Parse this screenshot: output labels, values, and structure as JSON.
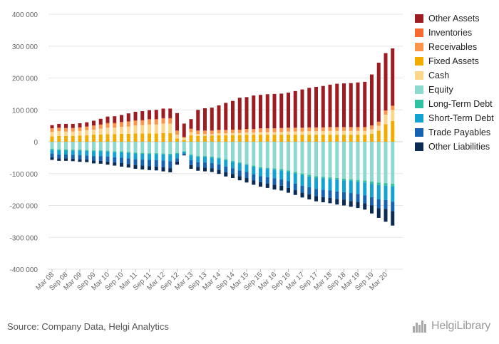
{
  "chart_data": {
    "type": "bar",
    "stacked": true,
    "ylim": [
      -400000,
      400000
    ],
    "yticks": [
      -400000,
      -300000,
      -200000,
      -100000,
      0,
      100000,
      200000,
      300000,
      400000
    ],
    "ytick_labels": [
      "-400 000",
      "-300 000",
      "-200 000",
      "-100 000",
      "0",
      "100 000",
      "200 000",
      "300 000",
      "400 000"
    ],
    "grid": true,
    "legend_position": "right",
    "x_tick_labels": [
      "Mar 08",
      "Sep 08",
      "Mar 09",
      "Sep 09",
      "Mar 10",
      "Sep 10",
      "Mar 11",
      "Sep 11",
      "Mar 12",
      "Sep 12",
      "Mar 13",
      "Sep 13",
      "Mar 14",
      "Sep 14",
      "Mar 15",
      "Sep 15",
      "Mar 16",
      "Sep 16",
      "Mar 17",
      "Sep 17",
      "Mar 18",
      "Sep 18",
      "Mar 19",
      "Sep 19",
      "Mar 20"
    ],
    "categories": [
      "Mar 08",
      "Jun 08",
      "Sep 08",
      "Dec 08",
      "Mar 09",
      "Jun 09",
      "Sep 09",
      "Dec 09",
      "Mar 10",
      "Jun 10",
      "Sep 10",
      "Dec 10",
      "Mar 11",
      "Jun 11",
      "Sep 11",
      "Dec 11",
      "Mar 12",
      "Jun 12",
      "Sep 12",
      "Dec 12",
      "Mar 13",
      "Jun 13",
      "Sep 13",
      "Dec 13",
      "Mar 14",
      "Jun 14",
      "Sep 14",
      "Dec 14",
      "Mar 15",
      "Jun 15",
      "Sep 15",
      "Dec 15",
      "Mar 16",
      "Jun 16",
      "Sep 16",
      "Dec 16",
      "Mar 17",
      "Jun 17",
      "Sep 17",
      "Dec 17",
      "Mar 18",
      "Jun 18",
      "Sep 18",
      "Dec 18",
      "Mar 19",
      "Jun 19",
      "Sep 19",
      "Dec 19",
      "Mar 20",
      "Jun 20"
    ],
    "series": [
      {
        "name": "Fixed Assets",
        "color": "#f2ac00",
        "values": [
          17000,
          18000,
          18000,
          18000,
          19000,
          20000,
          22000,
          23000,
          24000,
          24000,
          25000,
          25000,
          26000,
          26000,
          26000,
          26000,
          27000,
          27000,
          10000,
          6000,
          20000,
          18000,
          18000,
          19000,
          20000,
          20000,
          21000,
          21000,
          22000,
          22000,
          22000,
          22000,
          22000,
          22000,
          22000,
          22000,
          22000,
          22000,
          22000,
          22000,
          22000,
          22000,
          22000,
          22000,
          22000,
          22000,
          25000,
          35000,
          55000,
          65000
        ]
      },
      {
        "name": "Cash",
        "color": "#fcd68a",
        "values": [
          14000,
          15000,
          14000,
          14000,
          15000,
          16000,
          16000,
          18000,
          20000,
          20000,
          22000,
          23000,
          25000,
          26000,
          28000,
          28000,
          30000,
          30000,
          12000,
          5000,
          10000,
          6000,
          6000,
          5000,
          6000,
          6000,
          6000,
          6000,
          7000,
          7000,
          8000,
          8000,
          8000,
          9000,
          10000,
          10000,
          10000,
          11000,
          11000,
          11000,
          12000,
          12000,
          12000,
          12000,
          12000,
          12000,
          14000,
          15000,
          30000,
          35000
        ]
      },
      {
        "name": "Receivables",
        "color": "#fb9549",
        "values": [
          10000,
          10000,
          10000,
          10000,
          10000,
          11000,
          12000,
          12000,
          13000,
          13000,
          13000,
          14000,
          14000,
          14000,
          15000,
          15000,
          15000,
          15000,
          12000,
          3000,
          10000,
          10000,
          10000,
          10000,
          10000,
          10000,
          10000,
          10000,
          10000,
          10000,
          11000,
          11000,
          11000,
          11000,
          11000,
          11000,
          11000,
          11000,
          11000,
          11000,
          11000,
          11000,
          11000,
          11000,
          11000,
          11000,
          11000,
          12000,
          12000,
          12000
        ]
      },
      {
        "name": "Inventories",
        "color": "#f56a2e",
        "values": [
          1000,
          1000,
          1000,
          1000,
          1000,
          1000,
          1000,
          1000,
          2000,
          2000,
          2000,
          2000,
          2000,
          2000,
          2000,
          2000,
          2000,
          2000,
          1000,
          1000,
          1000,
          1000,
          1000,
          1000,
          1000,
          1000,
          1000,
          1000,
          1000,
          1000,
          1000,
          1000,
          1000,
          1000,
          1000,
          1000,
          1000,
          1000,
          1000,
          1000,
          1000,
          1000,
          1000,
          1000,
          1000,
          1000,
          1000,
          1000,
          1000,
          1000
        ]
      },
      {
        "name": "Other Assets",
        "color": "#9c1c22",
        "values": [
          10000,
          12000,
          13000,
          13000,
          13000,
          13000,
          15000,
          18000,
          20000,
          21000,
          22000,
          25000,
          27000,
          28000,
          28000,
          29000,
          30000,
          30000,
          55000,
          42000,
          30000,
          65000,
          70000,
          72000,
          77000,
          85000,
          90000,
          100000,
          100000,
          105000,
          105000,
          107000,
          108000,
          108000,
          110000,
          115000,
          120000,
          124000,
          127000,
          130000,
          133000,
          136000,
          137000,
          138000,
          140000,
          142000,
          160000,
          185000,
          180000,
          180000
        ]
      },
      {
        "name": "Equity",
        "color": "#8dd9d0",
        "values": [
          -22000,
          -24000,
          -24000,
          -25000,
          -25000,
          -26000,
          -27000,
          -27000,
          -28000,
          -30000,
          -30000,
          -32000,
          -34000,
          -35000,
          -36000,
          -36000,
          -37000,
          -38000,
          -35000,
          -30000,
          -40000,
          -45000,
          -45000,
          -47000,
          -50000,
          -55000,
          -60000,
          -65000,
          -70000,
          -75000,
          -80000,
          -82000,
          -84000,
          -86000,
          -90000,
          -95000,
          -100000,
          -104000,
          -108000,
          -110000,
          -112000,
          -114000,
          -116000,
          -118000,
          -120000,
          -122000,
          -125000,
          -128000,
          -130000,
          -132000
        ]
      },
      {
        "name": "Long-Term Debt",
        "color": "#2ec2a2",
        "values": [
          -3000,
          -3000,
          -3000,
          -3000,
          -3000,
          -3000,
          -3000,
          -3000,
          -3000,
          -3000,
          -3000,
          -3000,
          -3000,
          -3000,
          -3000,
          -3000,
          -3000,
          -3000,
          -2000,
          -1000,
          -3000,
          -3000,
          -3000,
          -3000,
          -3000,
          -3000,
          -3000,
          -3000,
          -3000,
          -3000,
          -3000,
          -3000,
          -4000,
          -4000,
          -4000,
          -4000,
          -5000,
          -5000,
          -5000,
          -5000,
          -5000,
          -5000,
          -5000,
          -5000,
          -6000,
          -6000,
          -7000,
          -8000,
          -8000,
          -8000
        ]
      },
      {
        "name": "Short-Term Debt",
        "color": "#14a3d0",
        "values": [
          -12000,
          -13000,
          -13000,
          -13000,
          -14000,
          -14000,
          -15000,
          -15000,
          -16000,
          -16000,
          -17000,
          -17000,
          -18000,
          -18000,
          -18000,
          -19000,
          -19000,
          -20000,
          -15000,
          -6000,
          -15000,
          -16000,
          -17000,
          -17000,
          -18000,
          -20000,
          -20000,
          -22000,
          -22000,
          -24000,
          -25000,
          -26000,
          -27000,
          -28000,
          -30000,
          -32000,
          -33000,
          -34000,
          -35000,
          -36000,
          -36000,
          -37000,
          -37000,
          -38000,
          -38000,
          -40000,
          -42000,
          -45000,
          -45000,
          -48000
        ]
      },
      {
        "name": "Trade Payables",
        "color": "#1563b0",
        "values": [
          -12000,
          -12000,
          -12000,
          -12000,
          -13000,
          -13000,
          -14000,
          -15000,
          -15000,
          -16000,
          -17000,
          -18000,
          -18000,
          -19000,
          -20000,
          -20000,
          -21000,
          -22000,
          -10000,
          -4000,
          -15000,
          -15000,
          -16000,
          -16000,
          -17000,
          -18000,
          -18000,
          -18000,
          -19000,
          -19000,
          -19000,
          -20000,
          -20000,
          -20000,
          -21000,
          -21000,
          -22000,
          -22000,
          -23000,
          -23000,
          -23000,
          -24000,
          -24000,
          -25000,
          -25000,
          -25000,
          -26000,
          -28000,
          -28000,
          -30000
        ]
      },
      {
        "name": "Other Liabilities",
        "color": "#0c2b53",
        "values": [
          -8000,
          -8000,
          -8000,
          -8000,
          -8000,
          -8000,
          -9000,
          -9000,
          -10000,
          -10000,
          -11000,
          -11000,
          -12000,
          -12000,
          -12000,
          -12000,
          -13000,
          -13000,
          -10000,
          -2000,
          -12000,
          -12000,
          -12000,
          -12000,
          -13000,
          -13000,
          -13000,
          -13000,
          -14000,
          -14000,
          -14000,
          -14000,
          -15000,
          -15000,
          -15000,
          -15000,
          -15000,
          -16000,
          -16000,
          -16000,
          -17000,
          -17000,
          -18000,
          -18000,
          -19000,
          -20000,
          -25000,
          -30000,
          -40000,
          -45000
        ]
      }
    ],
    "legend_order": [
      "Other Assets",
      "Inventories",
      "Receivables",
      "Fixed Assets",
      "Cash",
      "Equity",
      "Long-Term Debt",
      "Short-Term Debt",
      "Trade Payables",
      "Other Liabilities"
    ]
  },
  "source": "Source: Company Data, Helgi Analytics",
  "logo": "HelgiLibrary"
}
